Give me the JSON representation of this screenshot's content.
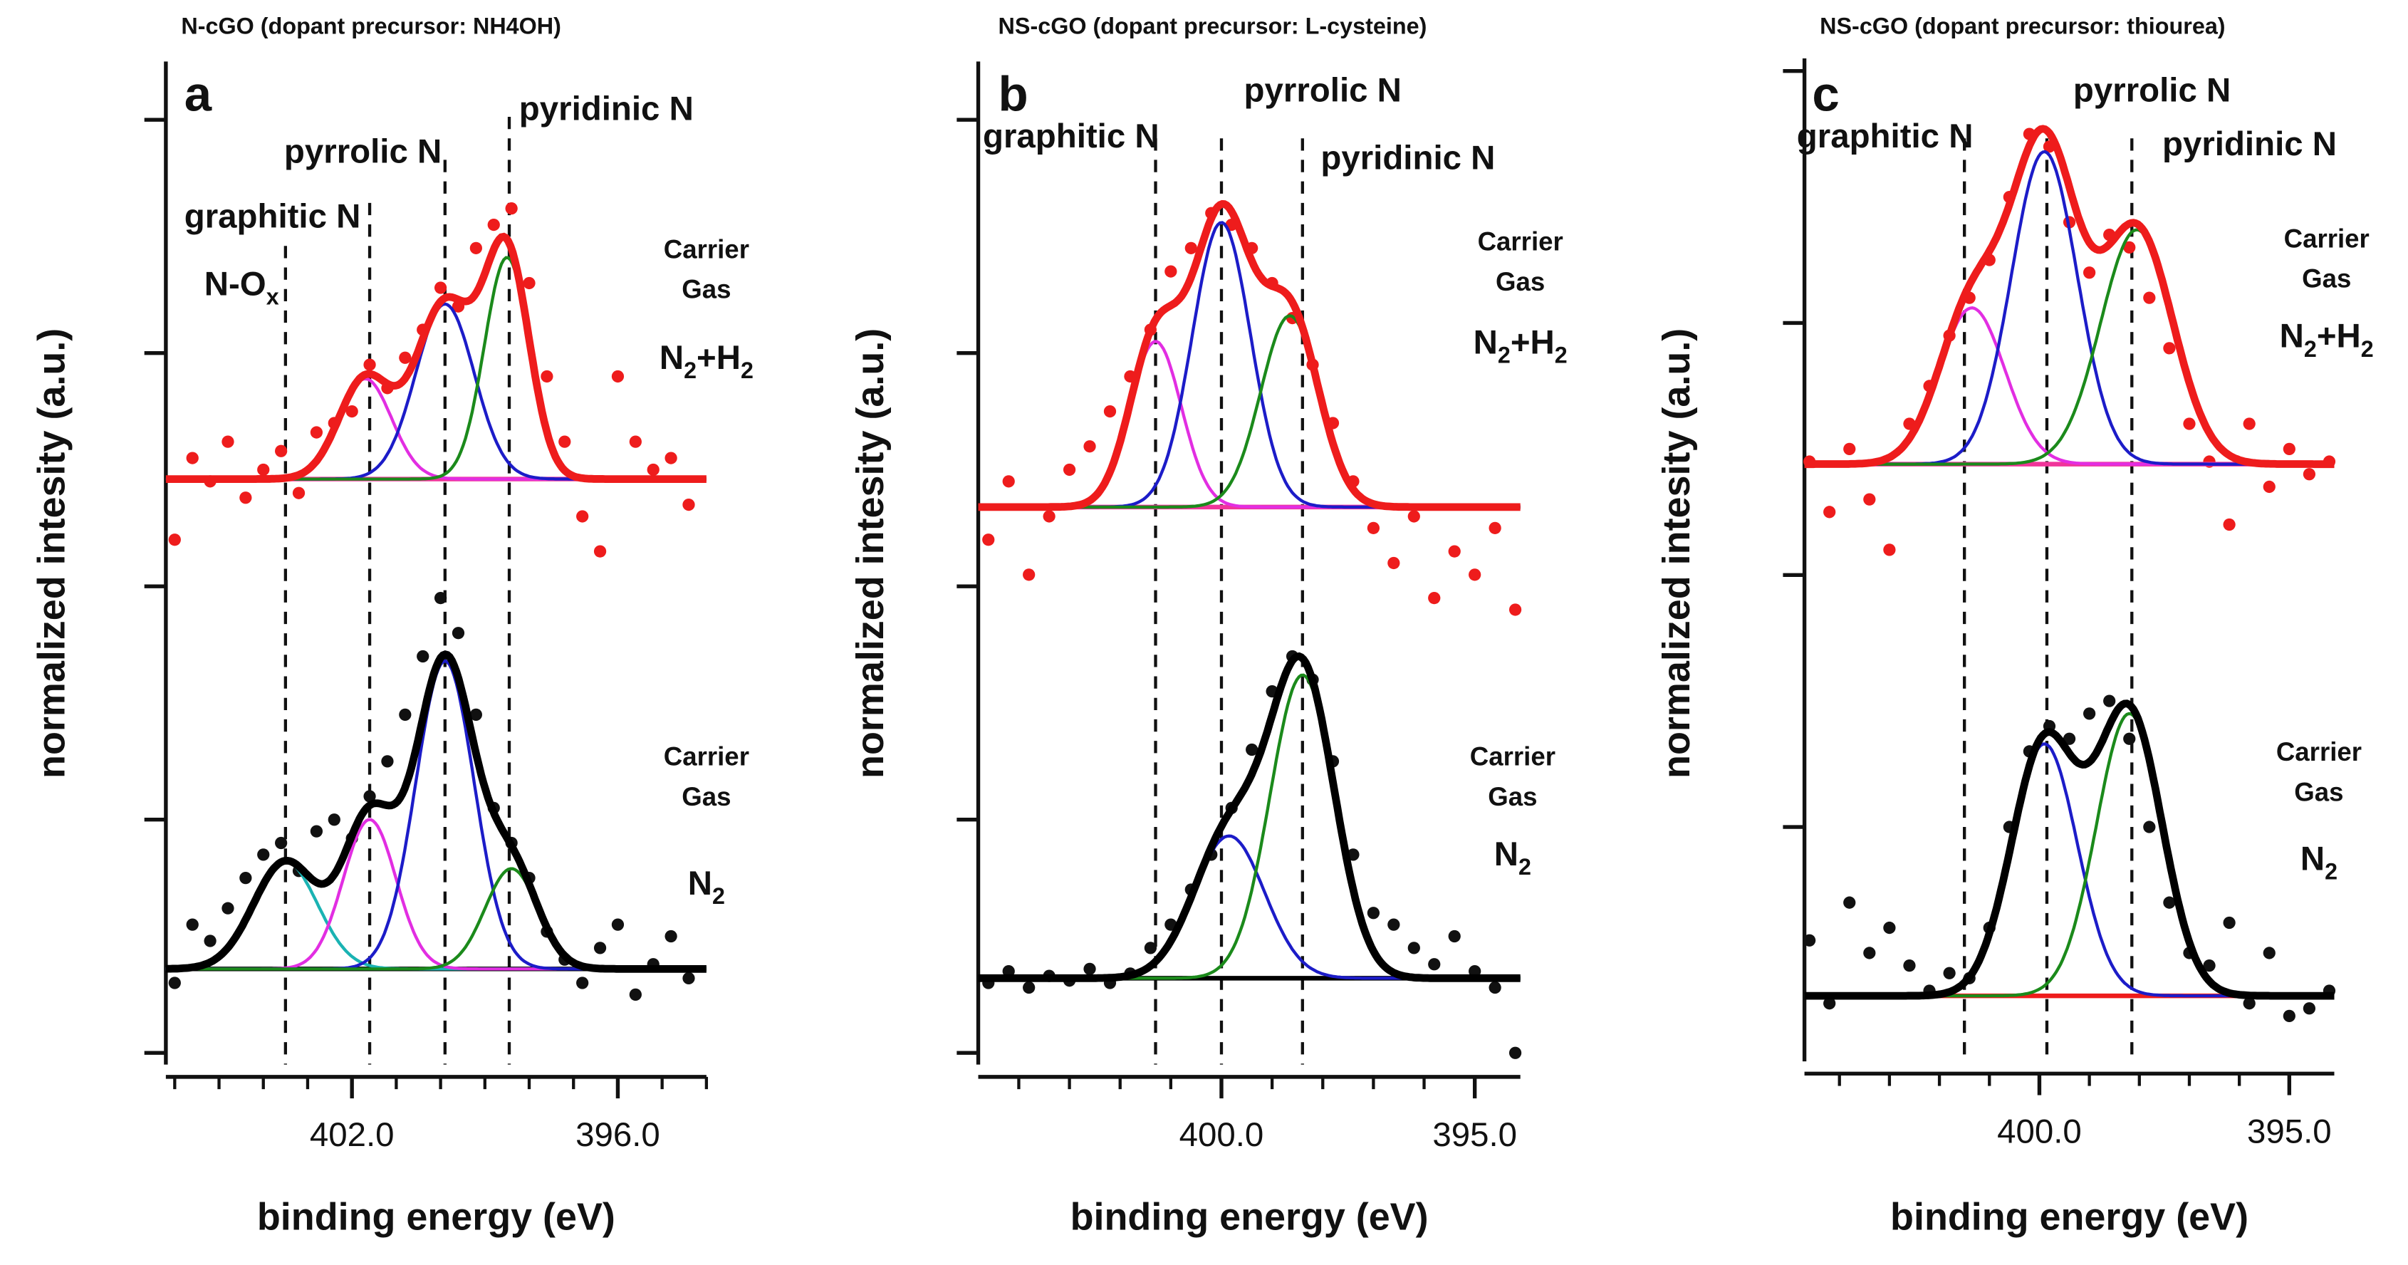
{
  "chart_data": [
    {
      "type": "xps",
      "title": "N-cGO (dopant precursor: NH4OH)",
      "panel": "a",
      "xlabel": "binding energy (eV)",
      "ylabel": "normalized intesity (a.u.)",
      "xlim": [
        406.2,
        394
      ],
      "xticks": [
        {
          "value": 402,
          "label": "402.0"
        },
        {
          "value": 396,
          "label": "396.0"
        }
      ],
      "xminorticks": [
        406,
        405,
        404,
        403,
        401,
        400,
        399,
        398,
        397,
        395,
        394
      ],
      "ylim": [
        -0.05,
        4.25
      ],
      "yticks": [
        0,
        1,
        2,
        3,
        4
      ],
      "reference_lines": [
        403.5,
        401.6,
        399.9,
        398.45
      ],
      "peak_labels": [
        [
          "N-O",
          "x"
        ],
        [
          "graphitic N"
        ],
        [
          "pyrrolic N"
        ],
        [
          "pyridinic N"
        ]
      ],
      "x": [
        406.0,
        405.6,
        405.2,
        404.8,
        404.4,
        404.0,
        403.6,
        403.2,
        402.8,
        402.4,
        402.0,
        401.6,
        401.2,
        400.8,
        400.4,
        400.0,
        399.6,
        399.2,
        398.8,
        398.4,
        398.0,
        397.6,
        397.2,
        396.8,
        396.4,
        396.0,
        395.6,
        395.2,
        394.8,
        394.4
      ],
      "spectra": [
        {
          "color": "#ee1c1c",
          "baseline_color": "#f0359a",
          "baseline": 2.46,
          "carrier_gas": [
            "Carrier",
            "Gas"
          ],
          "gas": [
            "N",
            "2",
            "+H",
            "2"
          ],
          "y": [
            2.2,
            2.55,
            2.45,
            2.62,
            2.38,
            2.5,
            2.58,
            2.4,
            2.66,
            2.7,
            2.75,
            2.95,
            2.85,
            2.98,
            3.1,
            3.28,
            3.2,
            3.45,
            3.55,
            3.62,
            3.3,
            2.9,
            2.62,
            2.3,
            2.15,
            2.9,
            2.62,
            2.5,
            2.55,
            2.35
          ],
          "components": [
            {
              "center": 401.7,
              "height": 0.43,
              "fwhm": 1.4,
              "color": "#e22ee2"
            },
            {
              "center": 399.9,
              "height": 0.75,
              "fwhm": 1.55,
              "color": "#1c1cc8"
            },
            {
              "center": 398.5,
              "height": 0.95,
              "fwhm": 1.2,
              "color": "#1b8a1b"
            }
          ]
        },
        {
          "color": "#000000",
          "baseline_color": "#000000",
          "baseline": 0.36,
          "carrier_gas": [
            "Carrier",
            "Gas"
          ],
          "gas": [
            "N",
            "2"
          ],
          "y": [
            0.3,
            0.55,
            0.48,
            0.62,
            0.75,
            0.85,
            0.9,
            0.78,
            0.95,
            1.0,
            0.92,
            1.1,
            1.25,
            1.45,
            1.7,
            1.95,
            1.8,
            1.45,
            1.05,
            0.9,
            0.75,
            0.52,
            0.4,
            0.3,
            0.45,
            0.55,
            0.25,
            0.38,
            0.5,
            0.32
          ],
          "components": [
            {
              "center": 403.5,
              "height": 0.46,
              "fwhm": 1.7,
              "color": "#1ab3b3"
            },
            {
              "center": 401.6,
              "height": 0.64,
              "fwhm": 1.4,
              "color": "#e22ee2"
            },
            {
              "center": 399.9,
              "height": 1.32,
              "fwhm": 1.55,
              "color": "#1c1cc8"
            },
            {
              "center": 398.4,
              "height": 0.43,
              "fwhm": 1.4,
              "color": "#1b8a1b"
            }
          ]
        }
      ]
    },
    {
      "type": "xps",
      "title": "NS-cGO (dopant precursor: L-cysteine)",
      "panel": "b",
      "xlabel": "binding energy (eV)",
      "ylabel": "normalized intesity (a.u.)",
      "xlim": [
        404.8,
        394.1
      ],
      "xticks": [
        {
          "value": 400,
          "label": "400.0"
        },
        {
          "value": 395,
          "label": "395.0"
        }
      ],
      "xminorticks": [
        404,
        403,
        402,
        401,
        399,
        398,
        397,
        396
      ],
      "ylim": [
        -0.05,
        4.25
      ],
      "yticks": [
        0,
        1,
        2,
        3,
        4
      ],
      "reference_lines": [
        401.3,
        400.0,
        398.4
      ],
      "peak_labels": [
        [
          "graphitic N"
        ],
        [
          "pyrrolic N"
        ],
        [
          "pyridinic N"
        ]
      ],
      "x": [
        404.6,
        404.2,
        403.8,
        403.4,
        403.0,
        402.6,
        402.2,
        401.8,
        401.4,
        401.0,
        400.6,
        400.2,
        399.8,
        399.4,
        399.0,
        398.6,
        398.2,
        397.8,
        397.4,
        397.0,
        396.6,
        396.2,
        395.8,
        395.4,
        395.0,
        394.6,
        394.2
      ],
      "spectra": [
        {
          "color": "#ee1c1c",
          "baseline_color": "#f0359a",
          "baseline": 2.34,
          "carrier_gas": [
            "Carrier",
            "Gas"
          ],
          "gas": [
            "N",
            "2",
            "+H",
            "2"
          ],
          "y": [
            2.2,
            2.45,
            2.05,
            2.3,
            2.5,
            2.6,
            2.75,
            2.9,
            3.1,
            3.35,
            3.45,
            3.6,
            3.55,
            3.45,
            3.3,
            3.15,
            2.95,
            2.7,
            2.45,
            2.25,
            2.1,
            2.3,
            1.95,
            2.15,
            2.05,
            2.25,
            1.9
          ],
          "components": [
            {
              "center": 401.3,
              "height": 0.71,
              "fwhm": 1.2,
              "color": "#e22ee2"
            },
            {
              "center": 400.0,
              "height": 1.22,
              "fwhm": 1.35,
              "color": "#1c1cc8"
            },
            {
              "center": 398.65,
              "height": 0.82,
              "fwhm": 1.35,
              "color": "#1b8a1b"
            }
          ]
        },
        {
          "color": "#000000",
          "baseline_color": "#000000",
          "baseline": 0.32,
          "carrier_gas": [
            "Carrier",
            "Gas"
          ],
          "gas": [
            "N",
            "2"
          ],
          "y": [
            0.3,
            0.35,
            0.28,
            0.33,
            0.31,
            0.36,
            0.3,
            0.34,
            0.45,
            0.55,
            0.7,
            0.85,
            1.05,
            1.3,
            1.55,
            1.7,
            1.6,
            1.25,
            0.85,
            0.6,
            0.55,
            0.45,
            0.38,
            0.5,
            0.35,
            0.28,
            0.0
          ],
          "components": [
            {
              "center": 399.85,
              "height": 0.61,
              "fwhm": 1.65,
              "color": "#1c1cc8"
            },
            {
              "center": 398.4,
              "height": 1.3,
              "fwhm": 1.5,
              "color": "#1b8a1b"
            }
          ]
        }
      ]
    },
    {
      "type": "xps",
      "title": "NS-cGO (dopant precursor: thiourea)",
      "panel": "c",
      "xlabel": "binding energy (eV)",
      "ylabel": "normalized intesity (a.u.)",
      "xlim": [
        404.7,
        394.1
      ],
      "xticks": [
        {
          "value": 400,
          "label": "400.0"
        },
        {
          "value": 395,
          "label": "395.0"
        }
      ],
      "xminorticks": [
        404,
        403,
        402,
        401,
        399,
        398,
        397,
        396
      ],
      "ylim": [
        0.07,
        4.05
      ],
      "yticks": [
        1,
        2,
        3,
        4
      ],
      "reference_lines": [
        401.5,
        399.85,
        398.15
      ],
      "peak_labels": [
        [
          "graphitic N"
        ],
        [
          "pyrrolic N"
        ],
        [
          "pyridinic N"
        ]
      ],
      "x": [
        404.6,
        404.2,
        403.8,
        403.4,
        403.0,
        402.6,
        402.2,
        401.8,
        401.4,
        401.0,
        400.6,
        400.2,
        399.8,
        399.4,
        399.0,
        398.6,
        398.2,
        397.8,
        397.4,
        397.0,
        396.6,
        396.2,
        395.8,
        395.4,
        395.0,
        394.6,
        394.2
      ],
      "spectra": [
        {
          "color": "#ee1c1c",
          "baseline_color": "#f0359a",
          "baseline": 2.44,
          "carrier_gas": [
            "Carrier",
            "Gas"
          ],
          "gas": [
            "N",
            "2",
            "+H",
            "2"
          ],
          "y": [
            2.45,
            2.25,
            2.5,
            2.3,
            2.1,
            2.6,
            2.75,
            2.95,
            3.1,
            3.25,
            3.5,
            3.75,
            3.7,
            3.4,
            3.2,
            3.35,
            3.3,
            3.1,
            2.9,
            2.6,
            2.45,
            2.2,
            2.6,
            2.35,
            2.5,
            2.4,
            2.45
          ],
          "components": [
            {
              "center": 401.35,
              "height": 0.62,
              "fwhm": 1.55,
              "color": "#e22ee2"
            },
            {
              "center": 399.9,
              "height": 1.24,
              "fwhm": 1.55,
              "color": "#1c1cc8"
            },
            {
              "center": 398.05,
              "height": 0.93,
              "fwhm": 1.7,
              "color": "#1b8a1b"
            }
          ]
        },
        {
          "color": "#000000",
          "baseline_color": "#ee1c1c",
          "baseline": 0.33,
          "carrier_gas": [
            "Carrier",
            "Gas"
          ],
          "gas": [
            "N",
            "2"
          ],
          "y": [
            0.55,
            0.3,
            0.7,
            0.5,
            0.6,
            0.45,
            0.35,
            0.42,
            0.4,
            0.6,
            1.0,
            1.3,
            1.4,
            1.35,
            1.45,
            1.5,
            1.35,
            1.0,
            0.7,
            0.5,
            0.45,
            0.62,
            0.3,
            0.5,
            0.25,
            0.28,
            0.35
          ],
          "components": [
            {
              "center": 399.9,
              "height": 1.0,
              "fwhm": 1.55,
              "color": "#1c1cc8"
            },
            {
              "center": 398.2,
              "height": 1.12,
              "fwhm": 1.55,
              "color": "#1b8a1b"
            }
          ]
        }
      ]
    }
  ]
}
